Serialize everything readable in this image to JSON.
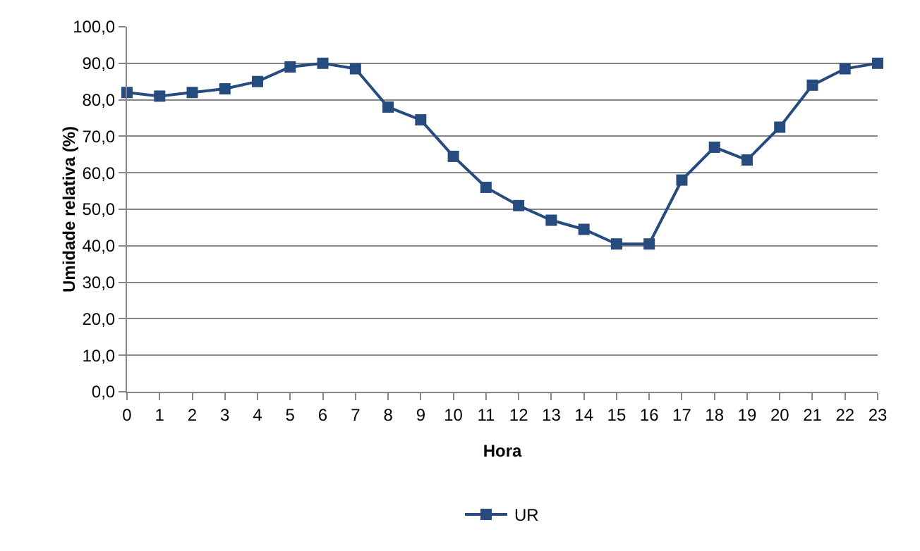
{
  "chart_data": {
    "type": "line",
    "xlabel": "Hora",
    "ylabel": "Umidade relativa (%)",
    "x": [
      0,
      1,
      2,
      3,
      4,
      5,
      6,
      7,
      8,
      9,
      10,
      11,
      12,
      13,
      14,
      15,
      16,
      17,
      18,
      19,
      20,
      21,
      22,
      23
    ],
    "xlim": [
      0,
      23
    ],
    "xticks": [
      0,
      1,
      2,
      3,
      4,
      5,
      6,
      7,
      8,
      9,
      10,
      11,
      12,
      13,
      14,
      15,
      16,
      17,
      18,
      19,
      20,
      21,
      22,
      23
    ],
    "ylim": [
      0,
      100
    ],
    "yticks": [
      {
        "value": 0,
        "label": "0,0"
      },
      {
        "value": 10,
        "label": "10,0"
      },
      {
        "value": 20,
        "label": "20,0"
      },
      {
        "value": 30,
        "label": "30,0"
      },
      {
        "value": 40,
        "label": "40,0"
      },
      {
        "value": 50,
        "label": "50,0"
      },
      {
        "value": 60,
        "label": "60,0"
      },
      {
        "value": 70,
        "label": "70,0"
      },
      {
        "value": 80,
        "label": "80,0"
      },
      {
        "value": 90,
        "label": "90,0"
      },
      {
        "value": 100,
        "label": "100,0"
      }
    ],
    "series": [
      {
        "name": "UR",
        "color": "#264b7e",
        "values": [
          82,
          81,
          82,
          83,
          85,
          89,
          90,
          88.5,
          78,
          74.5,
          64.5,
          56,
          51,
          47,
          44.5,
          40.5,
          40.5,
          58,
          67,
          63.5,
          72.5,
          84,
          88.5,
          90
        ]
      }
    ],
    "grid": "y",
    "legend": "bottom",
    "marker": "square",
    "line_style": "solid"
  }
}
